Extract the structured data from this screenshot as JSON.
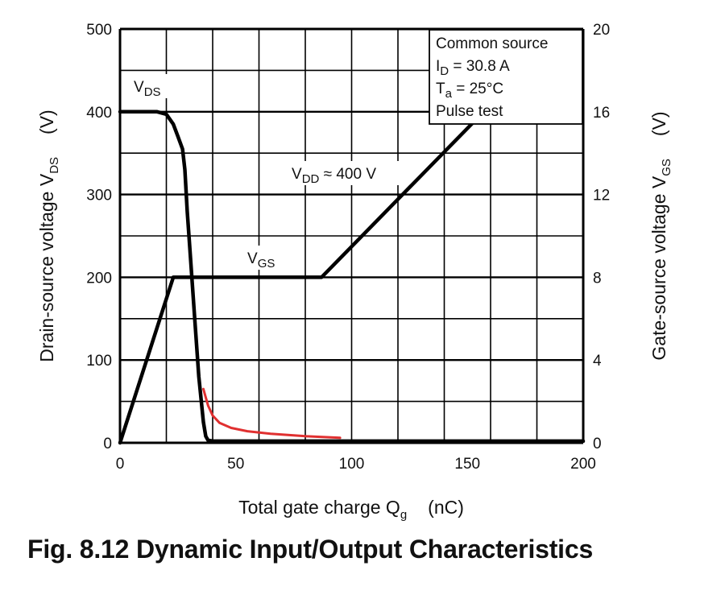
{
  "caption": "Fig. 8.12    Dynamic Input/Output Characteristics",
  "chart_data": {
    "type": "line",
    "xlabel": "Total gate charge    Q",
    "xlabel_sub": "g",
    "xlabel_unit": "(nC)",
    "ylabel_left": "Drain-source voltage    V",
    "ylabel_left_sub": "DS",
    "ylabel_left_unit": "(V)",
    "ylabel_right": "Gate-source voltage    V",
    "ylabel_right_sub": "GS",
    "ylabel_right_unit": "(V)",
    "xlim": [
      0,
      200
    ],
    "ylim_left": [
      0,
      500
    ],
    "ylim_right": [
      0,
      20
    ],
    "x_ticks": [
      "0",
      "50",
      "100",
      "150",
      "200"
    ],
    "y_ticks_left": [
      "0",
      "100",
      "200",
      "300",
      "400",
      "500"
    ],
    "y_ticks_right": [
      "0",
      "4",
      "8",
      "12",
      "16",
      "20"
    ],
    "grid": true,
    "legend_box": {
      "position": "top-right",
      "lines": [
        {
          "text": "Common source"
        },
        {
          "main": "I",
          "sub": "D",
          "rest": " = 30.8 A"
        },
        {
          "main": "T",
          "sub": "a",
          "rest": " = 25°C"
        },
        {
          "text": "Pulse test"
        }
      ]
    },
    "annotations": [
      {
        "main": "V",
        "sub": "DS",
        "rest": ""
      },
      {
        "main": "V",
        "sub": "GS",
        "rest": ""
      },
      {
        "main": "V",
        "sub": "DD",
        "rest": " ≈ 400 V"
      }
    ],
    "series": [
      {
        "axis": "left",
        "color": "#000000",
        "x": [
          0,
          16,
          20,
          23,
          25,
          27,
          28,
          29,
          30,
          32,
          34,
          36,
          37,
          38,
          40,
          45,
          60,
          100,
          150,
          200
        ],
        "y": [
          400,
          400,
          397,
          385,
          370,
          355,
          330,
          280,
          240,
          160,
          80,
          25,
          8,
          3,
          2,
          2,
          2,
          2,
          2,
          2
        ]
      },
      {
        "axis": "right",
        "color": "#000000",
        "x": [
          0,
          23,
          87,
          157
        ],
        "y": [
          0,
          8,
          8,
          16
        ]
      },
      {
        "axis": "left",
        "color": "#e03030",
        "x": [
          36,
          37,
          38,
          40,
          43,
          48,
          55,
          65,
          80,
          95
        ],
        "y": [
          65,
          55,
          45,
          33,
          24,
          18,
          14,
          11,
          8,
          6
        ]
      }
    ]
  }
}
